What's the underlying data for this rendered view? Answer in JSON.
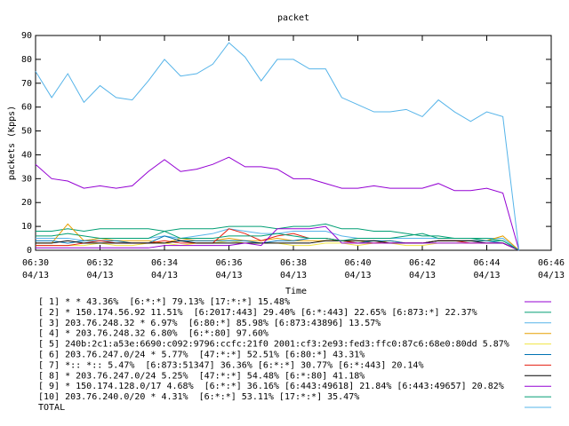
{
  "chart_data": {
    "type": "line",
    "title": "packet",
    "y_label": "packets (Kpps)",
    "x_label": "Time",
    "x": [
      "06:30:00",
      "06:30:30",
      "06:31:00",
      "06:31:30",
      "06:32:00",
      "06:32:30",
      "06:33:00",
      "06:33:30",
      "06:34:00",
      "06:34:30",
      "06:35:00",
      "06:35:30",
      "06:36:00",
      "06:36:30",
      "06:37:00",
      "06:37:30",
      "06:38:00",
      "06:38:30",
      "06:39:00",
      "06:39:30",
      "06:40:00",
      "06:40:30",
      "06:41:00",
      "06:41:30",
      "06:42:00",
      "06:42:30",
      "06:43:00",
      "06:43:30",
      "06:44:00",
      "06:44:30",
      "06:45:00"
    ],
    "xlim": [
      "06:30:00",
      "06:46:00"
    ],
    "xticks": [
      {
        "value": "06:30:00",
        "label": "06:30",
        "date": "04/13"
      },
      {
        "value": "06:32:00",
        "label": "06:32",
        "date": "04/13"
      },
      {
        "value": "06:34:00",
        "label": "06:34",
        "date": "04/13"
      },
      {
        "value": "06:36:00",
        "label": "06:36",
        "date": "04/13"
      },
      {
        "value": "06:38:00",
        "label": "06:38",
        "date": "04/13"
      },
      {
        "value": "06:40:00",
        "label": "06:40",
        "date": "04/13"
      },
      {
        "value": "06:42:00",
        "label": "06:42",
        "date": "04/13"
      },
      {
        "value": "06:44:00",
        "label": "06:44",
        "date": "04/13"
      },
      {
        "value": "06:46:00",
        "label": "06:46",
        "date": "04/13"
      }
    ],
    "ylim": [
      0,
      90
    ],
    "yticks": [
      0,
      10,
      20,
      30,
      40,
      50,
      60,
      70,
      80,
      90
    ],
    "grid": false,
    "series": [
      {
        "name": "[ 1] * * 43.36%  [6:*:*] 79.13% [17:*:*] 15.48%",
        "color": "#9400d3",
        "values": [
          36,
          30,
          29,
          26,
          27,
          26,
          27,
          33,
          38,
          33,
          34,
          36,
          39,
          35,
          35,
          34,
          30,
          30,
          28,
          26,
          26,
          27,
          26,
          26,
          26,
          28,
          25,
          25,
          26,
          24,
          0
        ]
      },
      {
        "name": "[ 2] * 150.174.56.92 11.51%  [6:2017:443] 29.40% [6:*:443] 22.65% [6:873:*] 22.37%",
        "color": "#009e73",
        "values": [
          8,
          8,
          9,
          8,
          9,
          9,
          9,
          9,
          8,
          9,
          9,
          9,
          10,
          10,
          10,
          9,
          10,
          10,
          11,
          9,
          9,
          8,
          8,
          7,
          6,
          6,
          5,
          5,
          4,
          4,
          0
        ]
      },
      {
        "name": "[ 3] 203.76.248.32 * 6.97%  [6:80:*] 85.98% [6:873:43896] 13.57%",
        "color": "#56b4e9",
        "values": [
          5,
          5,
          5,
          4,
          5,
          5,
          5,
          5,
          6,
          5,
          6,
          7,
          9,
          8,
          7,
          7,
          8,
          8,
          8,
          6,
          5,
          5,
          5,
          5,
          5,
          5,
          5,
          5,
          5,
          5,
          0
        ]
      },
      {
        "name": "[ 4] * 203.76.248.32 6.80%  [6:*:80] 97.60%",
        "color": "#e69f00",
        "values": [
          3,
          3,
          11,
          4,
          5,
          4,
          4,
          4,
          3,
          5,
          4,
          4,
          5,
          4,
          4,
          5,
          4,
          4,
          4,
          4,
          4,
          3,
          4,
          3,
          3,
          4,
          4,
          4,
          4,
          6,
          0
        ]
      },
      {
        "name": "[ 5] 240b:2c1:a53e:6690:c092:9796:ccfc:21f0 2001:cf3:2e93:fed3:ffc0:87c6:68e0:80dd 5.87%",
        "color": "#f0e442",
        "values": [
          2,
          2,
          2,
          2,
          3,
          2,
          2,
          3,
          3,
          2,
          3,
          3,
          4,
          3,
          3,
          3,
          2,
          2,
          3,
          3,
          2,
          3,
          3,
          2,
          2,
          3,
          3,
          3,
          3,
          3,
          0
        ]
      },
      {
        "name": "[ 6] 203.76.247.0/24 * 5.77%  [47:*:*] 52.51% [6:80:*] 43.31%",
        "color": "#0072b2",
        "values": [
          4,
          4,
          3,
          4,
          4,
          4,
          3,
          3,
          6,
          4,
          4,
          4,
          4,
          4,
          3,
          4,
          4,
          5,
          5,
          4,
          3,
          4,
          4,
          3,
          3,
          4,
          4,
          4,
          4,
          3,
          0
        ]
      },
      {
        "name": "[ 7] *:: *:: 5.47%  [6:873:51347] 36.36% [6:*:*] 30.77% [6:*:443] 20.14%",
        "color": "#e51e10",
        "values": [
          2,
          2,
          2,
          3,
          4,
          3,
          3,
          3,
          4,
          3,
          3,
          3,
          9,
          7,
          4,
          6,
          7,
          5,
          5,
          4,
          3,
          3,
          3,
          3,
          3,
          4,
          4,
          3,
          3,
          3,
          0
        ]
      },
      {
        "name": "[ 8] * 203.76.247.0/24 5.25%  [47:*:*] 54.48% [6:*:80] 41.18%",
        "color": "#000000",
        "values": [
          3,
          3,
          4,
          3,
          3,
          3,
          3,
          3,
          3,
          4,
          3,
          3,
          3,
          3,
          3,
          3,
          3,
          3,
          4,
          4,
          4,
          4,
          3,
          3,
          3,
          4,
          4,
          4,
          3,
          3,
          0
        ]
      },
      {
        "name": "[ 9] * 150.174.128.0/17 4.68%  [6:*:*] 36.16% [6:443:49618] 21.84% [6:443:49657] 20.82%",
        "color": "#9400d3",
        "values": [
          1,
          1,
          1,
          1,
          1,
          1,
          1,
          1,
          2,
          2,
          2,
          2,
          2,
          3,
          2,
          9,
          9,
          9,
          10,
          3,
          3,
          3,
          3,
          3,
          3,
          3,
          3,
          3,
          3,
          3,
          0
        ]
      },
      {
        "name": "[10] 203.76.240.0/20 * 4.31%  [6:*:*] 53.11% [17:*:*] 35.47%",
        "color": "#009e73",
        "values": [
          6,
          6,
          7,
          6,
          5,
          5,
          5,
          5,
          8,
          5,
          5,
          5,
          6,
          6,
          6,
          7,
          6,
          5,
          5,
          4,
          5,
          5,
          5,
          6,
          7,
          5,
          5,
          5,
          5,
          4,
          0
        ]
      },
      {
        "name": "TOTAL",
        "color": "#56b4e9",
        "values": [
          75,
          64,
          74,
          62,
          69,
          64,
          63,
          71,
          80,
          73,
          74,
          78,
          87,
          81,
          71,
          80,
          80,
          76,
          76,
          64,
          61,
          58,
          58,
          59,
          56,
          63,
          58,
          54,
          58,
          56,
          0
        ]
      }
    ]
  }
}
